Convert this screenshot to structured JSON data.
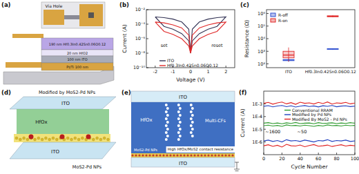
{
  "panel_labels": [
    "(a)",
    "(b)",
    "(c)",
    "(d)",
    "(e)",
    "(f)"
  ],
  "panel_a": {
    "via_hole": "Via Hole",
    "layers": [
      "190 nm Hf0.3In0.42Sn0.06O0.12",
      "20 nm HfO2",
      "100 nm ITO",
      "Pt/Ti 100 nm"
    ]
  },
  "panel_d": {
    "title": "Modified by MoS2-Pd NPs",
    "top": "ITO",
    "middle": "HfOx",
    "bottom": "ITO",
    "np_label": "MoS2-Pd NPs"
  },
  "panel_e": {
    "top": "ITO",
    "middle": "HfOx",
    "filaments": "Multi-CFs",
    "np_label": "MoS2-Pd NPs",
    "bottom": "ITO",
    "note": "High HfOx/MoS2 contact resistance"
  },
  "chart_data": [
    {
      "type": "line",
      "x_label": "Voltage (V)",
      "y_label": "Current (A)",
      "log": "y",
      "legend": "bottom",
      "x": [
        -2,
        -1.5,
        -1,
        -0.5,
        -0.1,
        0,
        0.1,
        0.5,
        1,
        1.5,
        2,
        1.5,
        1,
        0.5,
        0.1,
        0,
        -0.1,
        -0.5,
        -1,
        -1.5,
        -2
      ],
      "xlim": [
        -2.5,
        2.5
      ],
      "xticks": [
        -2,
        -1,
        0,
        1,
        2
      ],
      "ylim": [
        1e-10,
        0.01
      ],
      "yticks": [
        {
          "value": 1e-10,
          "label": "10⁻¹⁰"
        },
        {
          "value": 1e-08,
          "label": "10⁻⁸"
        },
        {
          "value": 1e-06,
          "label": "10⁻⁶"
        },
        {
          "value": 0.0001,
          "label": "10⁻⁴"
        },
        {
          "value": 0.01,
          "label": "10⁻²"
        }
      ],
      "annotations": [
        "set",
        "reset"
      ],
      "series": [
        {
          "name": "ITO",
          "color": "#333355",
          "values": [
            0.001,
            0.0008,
            0.0005,
            0.0002,
            2e-05,
            1e-08,
            2e-05,
            0.0002,
            0.0005,
            0.0008,
            0.001,
            5e-05,
            2e-05,
            5e-06,
            5e-07,
            1e-08,
            5e-07,
            5e-06,
            2e-05,
            5e-05,
            0.001
          ]
        },
        {
          "name": "Hf0.3In0.42Sn0.06O0.12",
          "color": "#e02828",
          "values": [
            0.0002,
            0.00015,
            8e-05,
            3e-05,
            3e-06,
            1e-08,
            3e-06,
            3e-05,
            8e-05,
            0.00015,
            0.0002,
            1e-05,
            4e-06,
            1e-06,
            1e-07,
            1e-08,
            1e-07,
            1e-06,
            4e-06,
            1e-05,
            0.0002
          ]
        }
      ]
    },
    {
      "type": "box",
      "y_label": "Resistance (Ω)",
      "log": "y",
      "legend": "top-left",
      "categories": [
        "ITO",
        "Hf0.3In0.42Sn0.06O0.12"
      ],
      "ylim": [
        50,
        2000000
      ],
      "yticks": [
        {
          "value": 100,
          "label": "10²"
        },
        {
          "value": 1000,
          "label": "10³"
        },
        {
          "value": 10000,
          "label": "10⁴"
        },
        {
          "value": 100000,
          "label": "10⁵"
        },
        {
          "value": 1000000,
          "label": "10⁶"
        }
      ],
      "series": [
        {
          "name": "R-off",
          "color": "#3050d0",
          "min": [
            150,
            1300
          ],
          "q1": [
            180,
            1400
          ],
          "median": [
            200,
            1500
          ],
          "q3": [
            220,
            1600
          ],
          "max": [
            260,
            1700
          ]
        },
        {
          "name": "R-on",
          "color": "#e02828",
          "min": [
            150,
            500000
          ],
          "q1": [
            300,
            550000
          ],
          "median": [
            500,
            600000
          ],
          "q3": [
            1000,
            650000
          ],
          "max": [
            2000,
            700000
          ]
        }
      ]
    },
    {
      "type": "line",
      "x_label": "Cycle Number",
      "y_label": "Current (A)",
      "log": "y",
      "legend": "center",
      "x": [
        0,
        5,
        10,
        15,
        20,
        25,
        30,
        35,
        40,
        45,
        50,
        55,
        60,
        65,
        70,
        75,
        80,
        85,
        90,
        95,
        100
      ],
      "xlim": [
        0,
        100
      ],
      "xticks": [
        0,
        20,
        40,
        60,
        80,
        100
      ],
      "ylim": [
        1e-07,
        0.01
      ],
      "yticks": [
        {
          "value": 1e-06,
          "label": "1E-6"
        },
        {
          "value": 1e-05,
          "label": "1E-5"
        },
        {
          "value": 0.0001,
          "label": "1E-4"
        },
        {
          "value": 0.001,
          "label": "1E-3"
        }
      ],
      "annotations": [
        "~1600",
        "~50"
      ],
      "series": [
        {
          "name": "Conventional RRAM",
          "color": "#2e9a2e",
          "values": [
            3e-05,
            3.3e-05,
            2.8e-05,
            3.1e-05,
            2.7e-05,
            3.2e-05,
            2.9e-05,
            3.4e-05,
            2.8e-05,
            3e-05,
            3.1e-05,
            2.7e-05,
            3.3e-05,
            2.9e-05,
            3e-05,
            3.2e-05,
            2.8e-05,
            3.1e-05,
            2.9e-05,
            3.3e-05,
            3e-05
          ],
          "off_values": [
            1.9e-05,
            2.1e-05,
            1.8e-05,
            2e-05,
            1.7e-05,
            2.2e-05,
            1.9e-05,
            2e-05,
            1.8e-05,
            2.1e-05,
            1.9e-05,
            1.7e-05,
            2e-05,
            1.8e-05,
            2.2e-05,
            1.9e-05,
            2e-05,
            1.8e-05,
            2.1e-05,
            1.9e-05,
            2e-05
          ]
        },
        {
          "name": "Modified by Pd NPs",
          "color": "#2040c0",
          "values": [
            0.00065,
            0.00072,
            0.00058,
            0.00068,
            0.00075,
            0.0006,
            0.0007,
            0.00056,
            0.00066,
            0.00073,
            0.00062,
            0.00069,
            0.00057,
            0.00071,
            0.00064,
            0.00074,
            0.00059,
            0.00067,
            0.0007,
            0.00061,
            0.00066
          ],
          "off_values": [
            1.2e-06,
            1.4e-06,
            1.1e-06,
            1.3e-06,
            1e-06,
            1.5e-06,
            1.2e-06,
            1.3e-06,
            1.1e-06,
            1.4e-06,
            1.2e-06,
            1e-06,
            1.3e-06,
            1.2e-06,
            1.5e-06,
            1.1e-06,
            1.3e-06,
            1.2e-06,
            1.4e-06,
            1.1e-06,
            1.2e-06
          ]
        },
        {
          "name": "Modified By MoS2 - Pd NPs",
          "color": "#e02020",
          "values": [
            0.0011,
            0.0013,
            0.00095,
            0.0012,
            0.0014,
            0.001,
            0.00125,
            0.00092,
            0.00135,
            0.0011,
            0.0012,
            0.00098,
            0.0013,
            0.00105,
            0.0014,
            0.00096,
            0.0012,
            0.0011,
            0.0013,
            0.001,
            0.00115
          ],
          "off_values": [
            5e-07,
            6e-07,
            4.5e-07,
            5.5e-07,
            4e-07,
            6.5e-07,
            5e-07,
            4.8e-07,
            5.8e-07,
            4.2e-07,
            5.3e-07,
            6.2e-07,
            4.6e-07,
            5e-07,
            5.7e-07,
            4.4e-07,
            5.2e-07,
            6e-07,
            4.8e-07,
            5.5e-07,
            5e-07
          ]
        }
      ]
    }
  ]
}
